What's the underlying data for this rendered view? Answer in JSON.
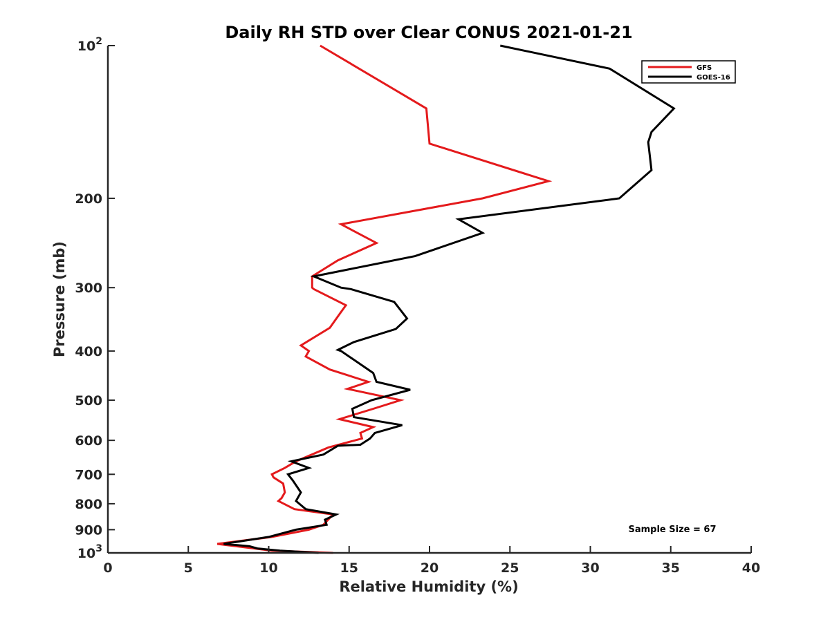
{
  "chart_data": {
    "type": "line",
    "title": "Daily RH STD over Clear CONUS 2021-01-21",
    "xlabel": "Relative Humidity (%)",
    "ylabel": "Pressure (mb)",
    "xlim": [
      0,
      40
    ],
    "ylim": [
      100,
      1000
    ],
    "y_scale": "log",
    "y_reversed": true,
    "grid": false,
    "x_ticks": [
      0,
      5,
      10,
      15,
      20,
      25,
      30,
      35,
      40
    ],
    "x_tick_labels": [
      "0",
      "5",
      "10",
      "15",
      "20",
      "25",
      "30",
      "35",
      "40"
    ],
    "y_ticks": [
      100,
      200,
      300,
      400,
      500,
      600,
      700,
      800,
      900,
      1000
    ],
    "y_tick_labels": [
      {
        "base": "10",
        "sup": "2"
      },
      {
        "base": "200"
      },
      {
        "base": "300"
      },
      {
        "base": "400"
      },
      {
        "base": "500"
      },
      {
        "base": "600"
      },
      {
        "base": "700"
      },
      {
        "base": "800"
      },
      {
        "base": "900"
      },
      {
        "base": "10",
        "sup": "3"
      }
    ],
    "legend_position": "top-right",
    "annotation": "Sample Size = 67",
    "series": [
      {
        "name": "GFS",
        "color": "#e41a1c",
        "x": [
          13.2,
          19.8,
          20.0,
          27.4,
          23.3,
          14.5,
          16.7,
          14.3,
          12.7,
          12.7,
          12.8,
          14.8,
          14.5,
          13.8,
          12.0,
          12.5,
          12.3,
          13.8,
          16.2,
          14.9,
          18.2,
          16.5,
          14.4,
          16.5,
          15.7,
          15.8,
          13.7,
          11.7,
          11.0,
          10.2,
          10.3,
          10.9,
          11.0,
          10.8,
          10.6,
          11.6,
          14.0,
          13.4,
          12.5,
          10.2,
          6.8,
          10.2,
          14.0
        ],
        "y": [
          100,
          133,
          156,
          185,
          200,
          225,
          245,
          265,
          285,
          300,
          302,
          325,
          335,
          360,
          390,
          400,
          410,
          435,
          460,
          475,
          500,
          520,
          545,
          565,
          580,
          595,
          620,
          660,
          680,
          700,
          710,
          730,
          760,
          780,
          790,
          820,
          840,
          880,
          900,
          930,
          960,
          990,
          1000
        ]
      },
      {
        "name": "GOES-16",
        "color": "#000000",
        "x": [
          24.4,
          31.2,
          35.2,
          33.8,
          33.6,
          33.8,
          31.8,
          21.8,
          23.3,
          19.1,
          12.8,
          14.5,
          15.1,
          17.8,
          18.6,
          17.9,
          15.3,
          14.3,
          14.5,
          16.5,
          16.7,
          18.8,
          16.4,
          15.2,
          15.3,
          18.3,
          16.6,
          16.4,
          16.3,
          15.7,
          14.3,
          13.4,
          11.4,
          12.5,
          11.2,
          11.5,
          12.0,
          11.7,
          11.9,
          12.3,
          14.2,
          13.5,
          13.6,
          11.7,
          10.0,
          7.2,
          8.8,
          9.3,
          10.7,
          13.1
        ],
        "y": [
          100,
          111,
          133,
          148,
          155,
          176,
          200,
          220,
          234,
          260,
          285,
          300,
          302,
          320,
          345,
          362,
          384,
          398,
          400,
          442,
          460,
          477,
          500,
          520,
          540,
          560,
          580,
          590,
          595,
          612,
          615,
          640,
          660,
          680,
          700,
          720,
          760,
          790,
          800,
          820,
          840,
          860,
          880,
          900,
          930,
          960,
          970,
          980,
          990,
          1000
        ]
      }
    ]
  }
}
